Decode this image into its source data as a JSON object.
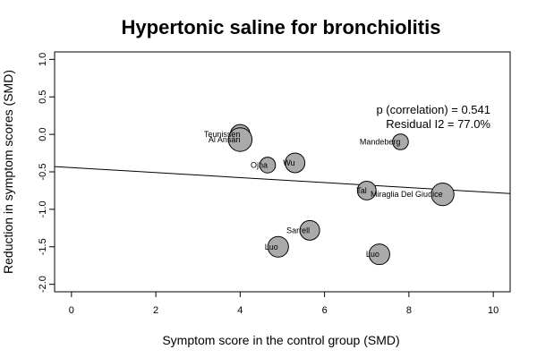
{
  "chart_data": {
    "type": "scatter",
    "title": "Hypertonic saline for bronchiolitis",
    "xlabel": "Symptom score in the control group (SMD)",
    "ylabel": "Reduction in symptom scores (SMD)",
    "xlim": [
      -0.4,
      10.4
    ],
    "ylim": [
      -2.1,
      1.1
    ],
    "x_ticks": [
      0,
      2,
      4,
      6,
      8,
      10
    ],
    "x_tick_labels": [
      "0",
      "2",
      "4",
      "6",
      "8",
      "10"
    ],
    "y_ticks": [
      -2.0,
      -1.5,
      -1.0,
      -0.5,
      0.0,
      0.5,
      1.0
    ],
    "y_tick_labels": [
      "-2.0",
      "-1.5",
      "-1.0",
      "-0.5",
      "0.0",
      "0.5",
      "1.0"
    ],
    "grid": false,
    "points": [
      {
        "label": "Teunissen",
        "x": 4.0,
        "y": 0.0,
        "size": 1.0
      },
      {
        "label": "Al Ansari",
        "x": 4.0,
        "y": -0.07,
        "size": 1.2
      },
      {
        "label": "Ojha",
        "x": 4.65,
        "y": -0.41,
        "size": 0.8
      },
      {
        "label": "Wu",
        "x": 5.3,
        "y": -0.38,
        "size": 1.0
      },
      {
        "label": "Mandeberg",
        "x": 7.8,
        "y": -0.1,
        "size": 0.8
      },
      {
        "label": "Tal",
        "x": 7.0,
        "y": -0.75,
        "size": 0.95
      },
      {
        "label": "Miraglia Del Giudice",
        "x": 8.8,
        "y": -0.8,
        "size": 1.15
      },
      {
        "label": "Sarrell",
        "x": 5.65,
        "y": -1.28,
        "size": 1.0
      },
      {
        "label": "Luo",
        "x": 4.9,
        "y": -1.5,
        "size": 1.05
      },
      {
        "label": "Luo",
        "x": 7.3,
        "y": -1.6,
        "size": 1.05
      }
    ],
    "regression_line": {
      "x": [
        -0.4,
        10.4
      ],
      "y": [
        -0.43,
        -0.79
      ]
    },
    "annotation_lines": [
      "p (correlation) = 0.541",
      "Residual I2 = 77.0%"
    ]
  }
}
